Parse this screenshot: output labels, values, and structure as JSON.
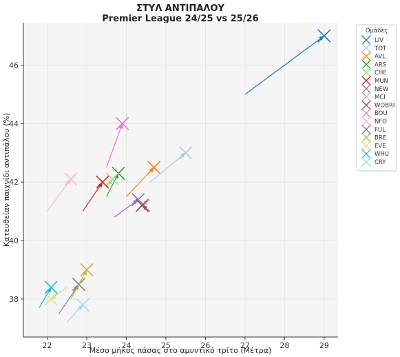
{
  "chart_data": {
    "type": "scatter",
    "title": "ΣΤΥΛ ΑΝΤΙΠΑΛΟΥ",
    "subtitle": "Premier League 24/25 vs 25/26",
    "xlabel": "Μέσο μήκος πάσας στο αμυντικό τρίτο (Μέτρα)",
    "ylabel": "Κατευθείαν παιχνίδι αντιπάλου (%)",
    "xlim": [
      21.4,
      29.35
    ],
    "ylim": [
      36.7,
      47.45
    ],
    "xticks": [
      22,
      23,
      24,
      25,
      26,
      27,
      28,
      29
    ],
    "yticks": [
      38,
      40,
      42,
      44,
      46
    ],
    "grid": true,
    "legend_title": "Ομάδες",
    "legend_position": "right",
    "series": [
      {
        "name": "LIV",
        "color": "#1f77b4",
        "from": [
          27.0,
          45.0
        ],
        "to": [
          29.0,
          47.0
        ]
      },
      {
        "name": "TOT",
        "color": "#aec7e8",
        "from": [
          24.6,
          42.0
        ],
        "to": [
          25.5,
          43.0
        ]
      },
      {
        "name": "AVL",
        "color": "#ff7f0e",
        "from": [
          24.0,
          41.5
        ],
        "to": [
          24.7,
          42.5
        ]
      },
      {
        "name": "ARS",
        "color": "#2ca02c",
        "from": [
          23.5,
          41.5
        ],
        "to": [
          23.8,
          42.3
        ]
      },
      {
        "name": "CHE",
        "color": "#98df8a",
        "from": [
          23.5,
          41.8
        ],
        "to": [
          23.65,
          42.1
        ]
      },
      {
        "name": "MUN",
        "color": "#d62728",
        "from": [
          22.9,
          41.0
        ],
        "to": [
          23.4,
          42.0
        ]
      },
      {
        "name": "NEW",
        "color": "#9467bd",
        "from": [
          23.7,
          40.8
        ],
        "to": [
          24.3,
          41.4
        ]
      },
      {
        "name": "MCI",
        "color": "#c5b0d5",
        "from": [
          24.6,
          41.4
        ],
        "to": [
          24.4,
          41.2
        ]
      },
      {
        "name": "WOBRI",
        "color": "#8c564b",
        "from": [
          24.6,
          41.0
        ],
        "to": [
          24.4,
          41.2
        ]
      },
      {
        "name": "BOU",
        "color": "#e377c2",
        "from": [
          23.5,
          42.5
        ],
        "to": [
          23.9,
          44.0
        ]
      },
      {
        "name": "NFO",
        "color": "#f7b6d2",
        "from": [
          22.0,
          41.0
        ],
        "to": [
          22.6,
          42.1
        ]
      },
      {
        "name": "FUL",
        "color": "#7f7f7f",
        "from": [
          22.3,
          37.5
        ],
        "to": [
          22.8,
          38.5
        ]
      },
      {
        "name": "BRE",
        "color": "#bcbd22",
        "from": [
          22.6,
          38.0
        ],
        "to": [
          23.0,
          39.0
        ]
      },
      {
        "name": "EVE",
        "color": "#dbdb8d",
        "from": [
          22.5,
          38.4
        ],
        "to": [
          22.1,
          38.0
        ]
      },
      {
        "name": "WHU",
        "color": "#17becf",
        "from": [
          21.8,
          37.7
        ],
        "to": [
          22.1,
          38.4
        ]
      },
      {
        "name": "CRY",
        "color": "#9edae5",
        "from": [
          22.5,
          37.2
        ],
        "to": [
          22.9,
          37.8
        ]
      }
    ]
  }
}
